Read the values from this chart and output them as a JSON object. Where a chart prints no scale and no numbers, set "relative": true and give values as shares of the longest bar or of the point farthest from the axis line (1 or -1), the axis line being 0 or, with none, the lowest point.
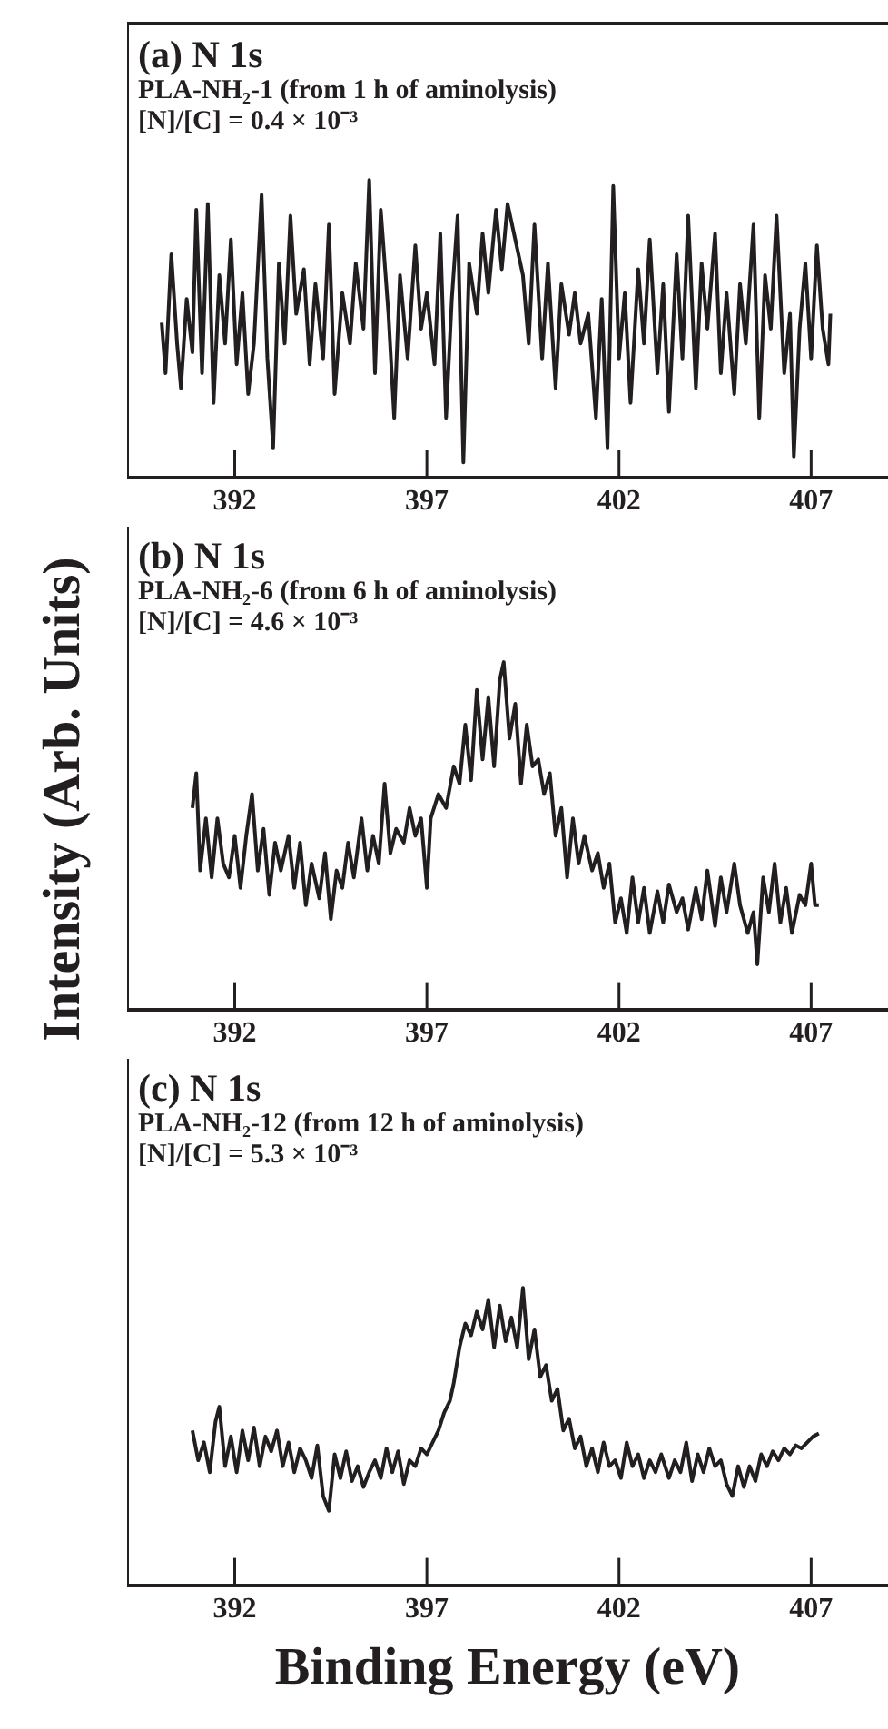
{
  "chart_data": [
    {
      "type": "line",
      "title": "(a) N 1s",
      "subtitle": "PLA-NH₂-1 (from 1 h of aminolysis)",
      "annotations": [
        "[N]/[C] = 0.4 × 10⁻³"
      ],
      "relative": true,
      "xlim": [
        389.2,
        409
      ],
      "xticks": [
        392,
        397,
        402,
        407
      ],
      "x": [
        390.1,
        390.2,
        390.35,
        390.5,
        390.6,
        390.75,
        390.9,
        391.0,
        391.15,
        391.3,
        391.45,
        391.6,
        391.75,
        391.9,
        392.05,
        392.2,
        392.35,
        392.5,
        392.7,
        392.85,
        393.0,
        393.15,
        393.3,
        393.45,
        393.6,
        393.8,
        393.95,
        394.1,
        394.3,
        394.45,
        394.6,
        394.8,
        395.0,
        395.15,
        395.35,
        395.5,
        395.65,
        395.8,
        396.0,
        396.15,
        396.3,
        396.5,
        396.7,
        396.85,
        397.0,
        397.2,
        397.35,
        397.5,
        397.65,
        397.8,
        397.95,
        398.1,
        398.3,
        398.45,
        398.6,
        398.8,
        398.95,
        399.1,
        399.3,
        399.5,
        399.65,
        399.8,
        400.0,
        400.15,
        400.35,
        400.5,
        400.7,
        400.85,
        401.0,
        401.2,
        401.4,
        401.55,
        401.7,
        401.85,
        402.0,
        402.15,
        402.3,
        402.5,
        402.65,
        402.8,
        403.0,
        403.15,
        403.3,
        403.5,
        403.65,
        403.8,
        404.0,
        404.15,
        404.3,
        404.5,
        404.65,
        404.8,
        405.0,
        405.15,
        405.3,
        405.5,
        405.65,
        405.8,
        405.95,
        406.1,
        406.3,
        406.45,
        406.55,
        406.7,
        406.85,
        407.0,
        407.15,
        407.3,
        407.45,
        407.5
      ],
      "series": [
        {
          "color": "#231f20",
          "values": [
            0.52,
            0.35,
            0.75,
            0.45,
            0.3,
            0.6,
            0.42,
            0.9,
            0.35,
            0.92,
            0.25,
            0.68,
            0.45,
            0.8,
            0.38,
            0.62,
            0.28,
            0.45,
            0.95,
            0.4,
            0.1,
            0.72,
            0.45,
            0.88,
            0.55,
            0.7,
            0.38,
            0.65,
            0.4,
            0.85,
            0.28,
            0.62,
            0.45,
            0.72,
            0.5,
            1.0,
            0.35,
            0.9,
            0.55,
            0.2,
            0.68,
            0.4,
            0.78,
            0.5,
            0.62,
            0.38,
            0.82,
            0.2,
            0.6,
            0.88,
            0.05,
            0.72,
            0.55,
            0.82,
            0.62,
            0.9,
            0.7,
            0.92,
            0.8,
            0.68,
            0.45,
            0.85,
            0.4,
            0.72,
            0.3,
            0.65,
            0.48,
            0.62,
            0.45,
            0.55,
            0.2,
            0.6,
            0.1,
            0.98,
            0.4,
            0.62,
            0.25,
            0.7,
            0.45,
            0.8,
            0.35,
            0.65,
            0.22,
            0.75,
            0.4,
            0.88,
            0.3,
            0.72,
            0.5,
            0.82,
            0.35,
            0.62,
            0.28,
            0.65,
            0.45,
            0.85,
            0.2,
            0.68,
            0.5,
            0.88,
            0.35,
            0.55,
            0.07,
            0.5,
            0.72,
            0.4,
            0.78,
            0.5,
            0.38,
            0.55
          ]
        }
      ]
    },
    {
      "type": "line",
      "title": "(b) N 1s",
      "subtitle": "PLA-NH₂-6 (from 6 h of aminolysis)",
      "annotations": [
        "[N]/[C] = 4.6 × 10⁻³"
      ],
      "ylabel": "Intensity (Arb. Units)",
      "relative": true,
      "xlim": [
        389.2,
        409
      ],
      "xticks": [
        392,
        397,
        402,
        407
      ],
      "x": [
        390.9,
        391.0,
        391.1,
        391.25,
        391.4,
        391.55,
        391.7,
        391.85,
        392.0,
        392.15,
        392.3,
        392.45,
        392.6,
        392.75,
        392.9,
        393.05,
        393.2,
        393.4,
        393.55,
        393.7,
        393.85,
        394.0,
        394.2,
        394.35,
        394.5,
        394.65,
        394.8,
        394.95,
        395.1,
        395.3,
        395.45,
        395.6,
        395.75,
        395.9,
        396.05,
        396.2,
        396.4,
        396.55,
        396.7,
        396.85,
        397.0,
        397.1,
        397.3,
        397.5,
        397.7,
        397.85,
        398.0,
        398.15,
        398.3,
        398.45,
        398.6,
        398.75,
        398.9,
        399.0,
        399.15,
        399.3,
        399.45,
        399.6,
        399.75,
        399.9,
        400.05,
        400.2,
        400.35,
        400.5,
        400.65,
        400.8,
        400.95,
        401.1,
        401.3,
        401.45,
        401.6,
        401.75,
        401.9,
        402.05,
        402.2,
        402.35,
        402.5,
        402.65,
        402.8,
        403.0,
        403.15,
        403.3,
        403.5,
        403.65,
        403.8,
        404.0,
        404.15,
        404.3,
        404.5,
        404.65,
        404.8,
        405.0,
        405.15,
        405.35,
        405.5,
        405.6,
        405.75,
        405.9,
        406.05,
        406.2,
        406.35,
        406.5,
        406.7,
        406.85,
        407.0,
        407.1,
        407.2
      ],
      "series": [
        {
          "color": "#231f20",
          "values": [
            0.58,
            0.68,
            0.4,
            0.55,
            0.38,
            0.55,
            0.42,
            0.38,
            0.5,
            0.35,
            0.5,
            0.62,
            0.4,
            0.52,
            0.33,
            0.48,
            0.4,
            0.5,
            0.35,
            0.48,
            0.3,
            0.42,
            0.32,
            0.45,
            0.26,
            0.4,
            0.35,
            0.48,
            0.38,
            0.55,
            0.4,
            0.5,
            0.42,
            0.65,
            0.45,
            0.52,
            0.48,
            0.58,
            0.5,
            0.55,
            0.35,
            0.55,
            0.62,
            0.58,
            0.7,
            0.65,
            0.82,
            0.66,
            0.92,
            0.72,
            0.9,
            0.7,
            0.95,
            1.0,
            0.78,
            0.88,
            0.65,
            0.82,
            0.7,
            0.72,
            0.62,
            0.68,
            0.5,
            0.58,
            0.38,
            0.55,
            0.42,
            0.5,
            0.4,
            0.45,
            0.35,
            0.42,
            0.25,
            0.32,
            0.22,
            0.38,
            0.25,
            0.35,
            0.22,
            0.34,
            0.25,
            0.36,
            0.28,
            0.32,
            0.23,
            0.35,
            0.26,
            0.4,
            0.24,
            0.38,
            0.28,
            0.42,
            0.3,
            0.22,
            0.28,
            0.13,
            0.38,
            0.28,
            0.42,
            0.25,
            0.35,
            0.22,
            0.33,
            0.3,
            0.42,
            0.3,
            0.3
          ]
        }
      ]
    },
    {
      "type": "line",
      "title": "(c) N 1s",
      "subtitle": "PLA-NH₂-12 (from 12 h of aminolysis)",
      "annotations": [
        "[N]/[C] = 5.3 × 10⁻³"
      ],
      "xlabel": "Binding Energy (eV)",
      "relative": true,
      "xlim": [
        389.2,
        409
      ],
      "xticks": [
        392,
        397,
        402,
        407
      ],
      "x": [
        390.9,
        391.05,
        391.2,
        391.35,
        391.5,
        391.6,
        391.75,
        391.9,
        392.05,
        392.2,
        392.35,
        392.5,
        392.65,
        392.8,
        392.95,
        393.1,
        393.25,
        393.4,
        393.55,
        393.7,
        393.85,
        394.0,
        394.15,
        394.3,
        394.45,
        394.6,
        394.75,
        394.9,
        395.05,
        395.2,
        395.35,
        395.5,
        395.65,
        395.8,
        395.95,
        396.1,
        396.25,
        396.4,
        396.55,
        396.7,
        396.85,
        397.0,
        397.15,
        397.3,
        397.45,
        397.6,
        397.7,
        397.85,
        398.0,
        398.15,
        398.3,
        398.45,
        398.6,
        398.75,
        398.9,
        399.05,
        399.2,
        399.35,
        399.5,
        399.65,
        399.8,
        399.95,
        400.1,
        400.25,
        400.4,
        400.55,
        400.7,
        400.85,
        401.0,
        401.15,
        401.3,
        401.45,
        401.6,
        401.75,
        401.9,
        402.05,
        402.2,
        402.35,
        402.5,
        402.65,
        402.8,
        402.95,
        403.1,
        403.3,
        403.45,
        403.6,
        403.75,
        403.9,
        404.05,
        404.2,
        404.35,
        404.5,
        404.65,
        404.8,
        404.95,
        405.1,
        405.25,
        405.4,
        405.55,
        405.7,
        405.85,
        406.0,
        406.15,
        406.3,
        406.45,
        406.6,
        406.75,
        406.9,
        407.05,
        407.2
      ],
      "series": [
        {
          "color": "#231f20",
          "values": [
            0.52,
            0.42,
            0.48,
            0.38,
            0.55,
            0.6,
            0.4,
            0.5,
            0.38,
            0.52,
            0.42,
            0.53,
            0.4,
            0.5,
            0.45,
            0.52,
            0.4,
            0.48,
            0.38,
            0.46,
            0.42,
            0.36,
            0.47,
            0.3,
            0.25,
            0.44,
            0.36,
            0.45,
            0.35,
            0.4,
            0.33,
            0.38,
            0.42,
            0.36,
            0.46,
            0.38,
            0.45,
            0.34,
            0.42,
            0.4,
            0.46,
            0.44,
            0.48,
            0.52,
            0.58,
            0.62,
            0.68,
            0.8,
            0.88,
            0.84,
            0.92,
            0.86,
            0.96,
            0.8,
            0.94,
            0.82,
            0.9,
            0.8,
            1.0,
            0.76,
            0.86,
            0.7,
            0.74,
            0.62,
            0.66,
            0.52,
            0.56,
            0.46,
            0.5,
            0.4,
            0.46,
            0.38,
            0.48,
            0.4,
            0.42,
            0.36,
            0.48,
            0.4,
            0.44,
            0.36,
            0.42,
            0.38,
            0.44,
            0.36,
            0.42,
            0.38,
            0.48,
            0.35,
            0.44,
            0.38,
            0.46,
            0.4,
            0.42,
            0.34,
            0.3,
            0.4,
            0.33,
            0.4,
            0.35,
            0.44,
            0.4,
            0.45,
            0.42,
            0.46,
            0.44,
            0.47,
            0.46,
            0.48,
            0.5,
            0.51
          ]
        }
      ]
    }
  ]
}
